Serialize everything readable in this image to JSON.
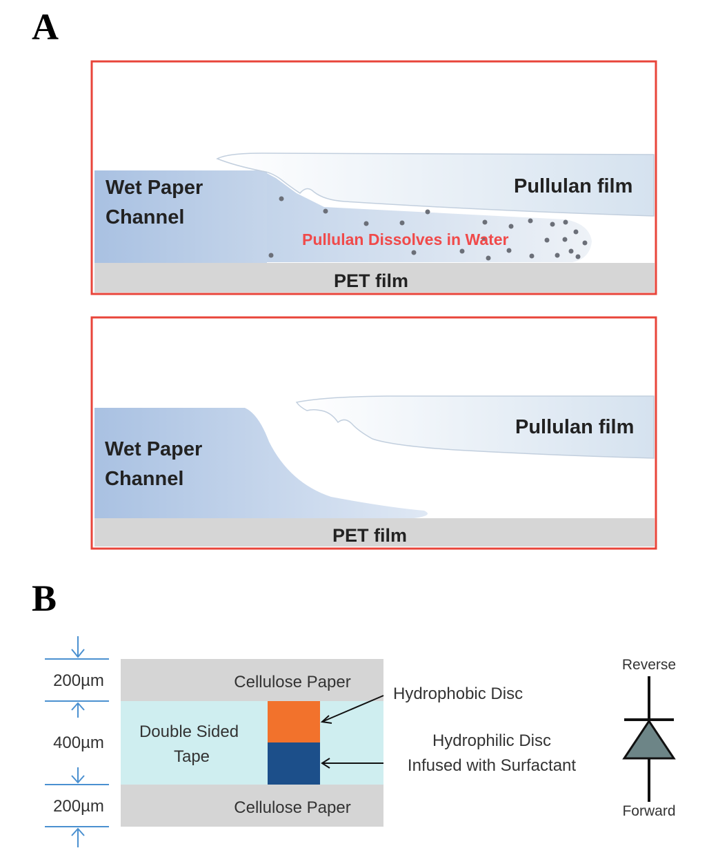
{
  "panel_a": {
    "letter": "A",
    "top": {
      "wet_paper_line1": "Wet Paper",
      "wet_paper_line2": "Channel",
      "pullulan_film": "Pullulan film",
      "dissolves": "Pullulan Dissolves in Water",
      "pet_film": "PET film"
    },
    "bottom": {
      "wet_paper_line1": "Wet Paper",
      "wet_paper_line2": "Channel",
      "pullulan_film": "Pullulan film",
      "pet_film": "PET film"
    }
  },
  "panel_b": {
    "letter": "B",
    "dim_top": "200µm",
    "dim_mid": "400µm",
    "dim_bottom": "200µm",
    "cellulose_top": "Cellulose Paper",
    "cellulose_bottom": "Cellulose Paper",
    "tape_line1": "Double Sided",
    "tape_line2": "Tape",
    "hydrophobic": "Hydrophobic Disc",
    "hydrophilic_line1": "Hydrophilic Disc",
    "hydrophilic_line2": "Infused with Surfactant",
    "reverse": "Reverse",
    "forward": "Forward"
  },
  "colors": {
    "frame_red": "#e8443a",
    "paper_blue": "#a9c1e2",
    "pet_gray": "#d6d6d6",
    "red_text": "#f04a4a",
    "tape_cyan": "#cfeef0",
    "cellulose_gray": "#d5d5d5",
    "hydrophobic_orange": "#f2722c",
    "hydrophilic_navy": "#1c4f8a",
    "dim_blue": "#4a90d0",
    "diode_fill": "#6d8587"
  }
}
